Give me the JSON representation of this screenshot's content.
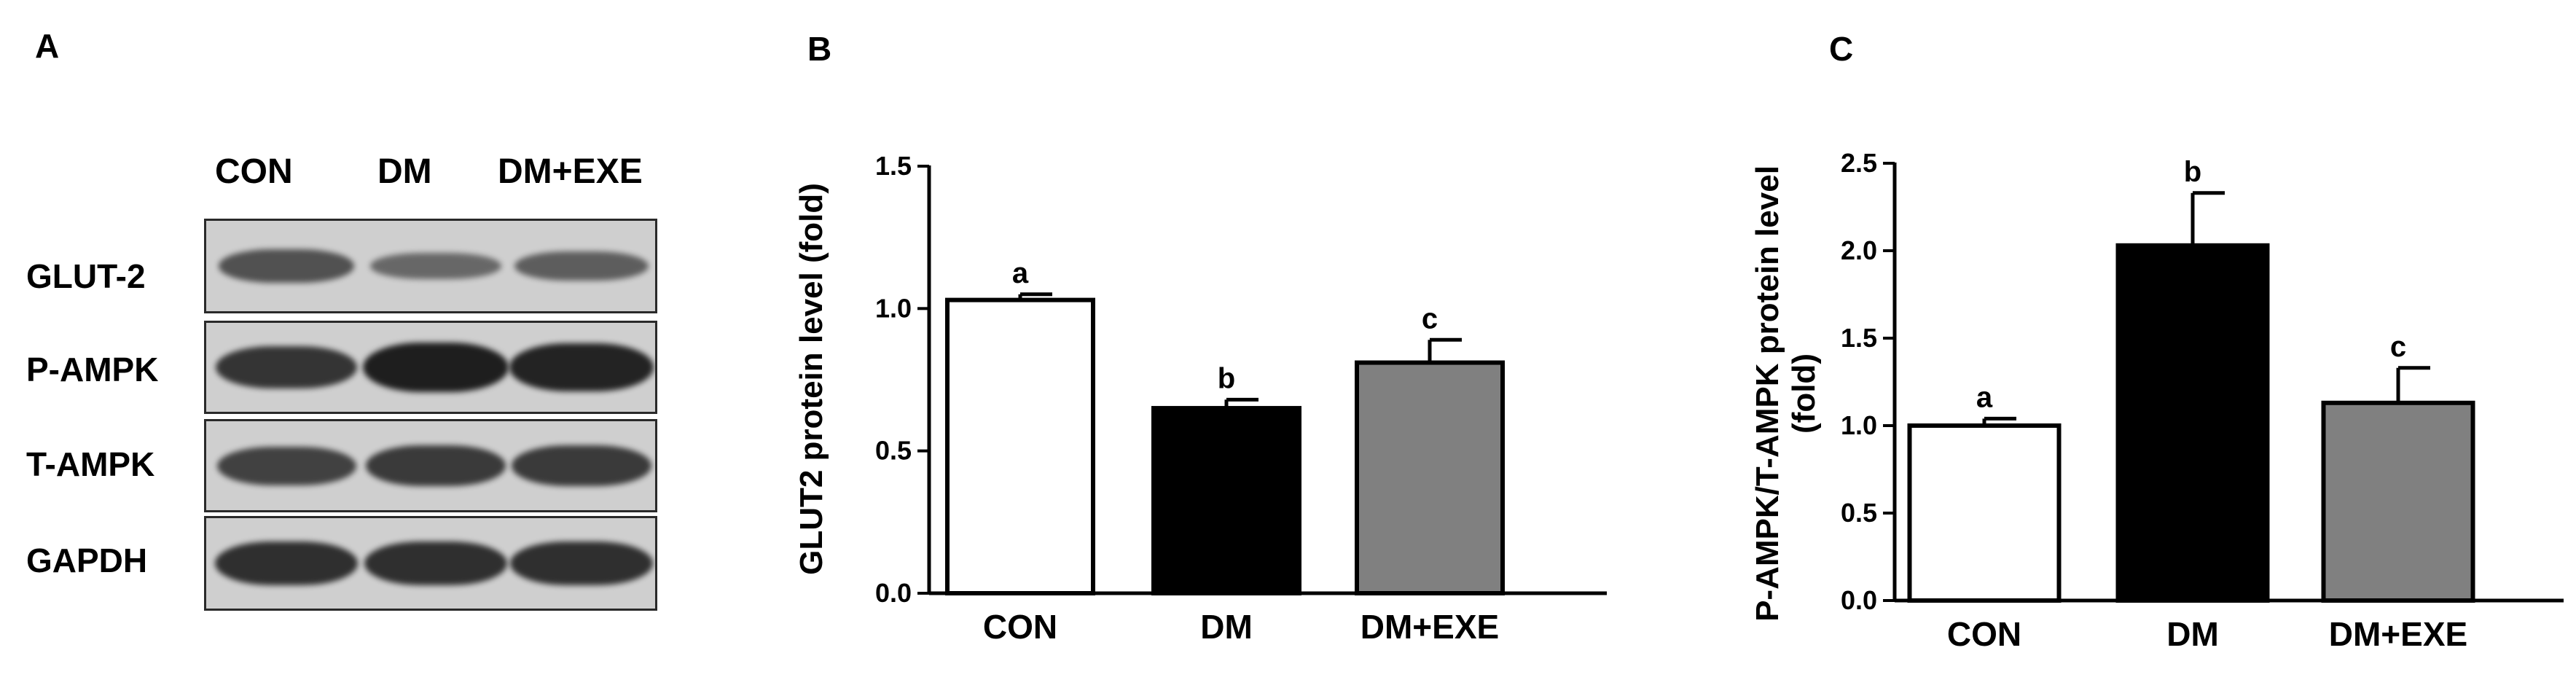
{
  "panels": {
    "a_letter": "A",
    "b_letter": "B",
    "c_letter": "C"
  },
  "blot": {
    "lanes": [
      "CON",
      "DM",
      "DM+EXE"
    ],
    "rows": [
      {
        "label": "GLUT-2",
        "intensity": [
          0.55,
          0.35,
          0.45
        ]
      },
      {
        "label": "P-AMPK",
        "intensity": [
          0.8,
          1.0,
          0.95
        ]
      },
      {
        "label": "T-AMPK",
        "intensity": [
          0.7,
          0.75,
          0.75
        ]
      },
      {
        "label": "GAPDH",
        "intensity": [
          0.85,
          0.85,
          0.85
        ]
      }
    ]
  },
  "colors": {
    "con": "#ffffff",
    "dm": "#000000",
    "dm_exe": "#808080",
    "axis": "#000000",
    "band": "#1e1e1e",
    "blot_bg": "#cfcfcf"
  },
  "chart_data": [
    {
      "type": "bar",
      "categories": [
        "CON",
        "DM",
        "DM+EXE"
      ],
      "values": [
        1.03,
        0.65,
        0.81
      ],
      "errors": [
        0.02,
        0.03,
        0.08
      ],
      "significance": [
        "a",
        "b",
        "c"
      ],
      "ylabel": "GLUT2 protein level (fold)",
      "ylabel_lines": [
        "GLUT2 protein level (fold)"
      ],
      "ylim": [
        0,
        1.5
      ],
      "yticks": [
        0.0,
        0.5,
        1.0,
        1.5
      ],
      "ytick_labels": [
        "0.0",
        "0.5",
        "1.0",
        "1.5"
      ]
    },
    {
      "type": "bar",
      "categories": [
        "CON",
        "DM",
        "DM+EXE"
      ],
      "values": [
        1.0,
        2.03,
        1.13
      ],
      "errors": [
        0.04,
        0.3,
        0.2
      ],
      "significance": [
        "a",
        "b",
        "c"
      ],
      "ylabel": "P-AMPK/T-AMPK protein level (fold)",
      "ylabel_lines": [
        "P-AMPK/T-AMPK protein level",
        "(fold)"
      ],
      "ylim": [
        0,
        2.5
      ],
      "yticks": [
        0.0,
        0.5,
        1.0,
        1.5,
        2.0,
        2.5
      ],
      "ytick_labels": [
        "0.0",
        "0.5",
        "1.0",
        "1.5",
        "2.0",
        "2.5"
      ]
    }
  ]
}
